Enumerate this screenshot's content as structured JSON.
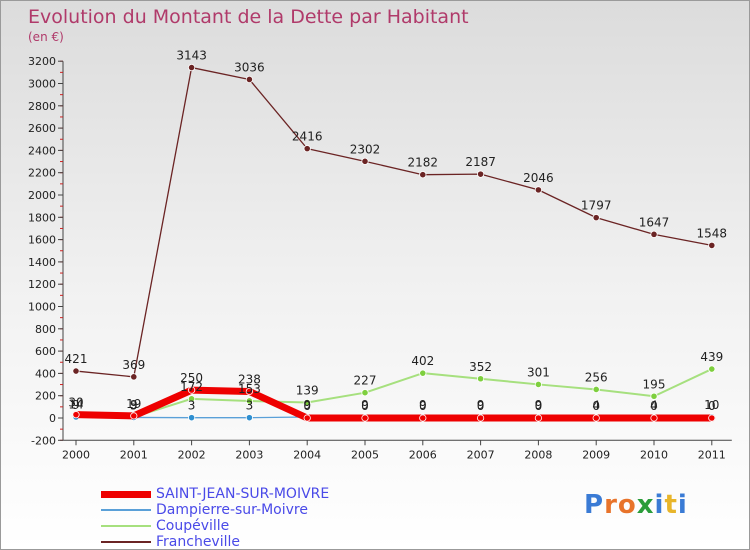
{
  "header": {
    "title": "Evolution du Montant de la Dette par Habitant",
    "subtitle": "(en €)"
  },
  "logo": {
    "text": "Proxiti",
    "colors": [
      "#3a7bd5",
      "#e8732a",
      "#e8732a",
      "#2a9d3a",
      "#3a7bd5",
      "#e8b52a",
      "#3a7bd5"
    ]
  },
  "chart_data": {
    "type": "line",
    "x": [
      "2000",
      "2001",
      "2002",
      "2003",
      "2004",
      "2005",
      "2006",
      "2007",
      "2008",
      "2009",
      "2010",
      "2011"
    ],
    "ylim": [
      -200,
      3200
    ],
    "yticks": [
      -200,
      0,
      200,
      400,
      600,
      800,
      1000,
      1200,
      1400,
      1600,
      1800,
      2000,
      2200,
      2400,
      2600,
      2800,
      3000,
      3200
    ],
    "grid": false,
    "legend_position": "bottom-left",
    "series": [
      {
        "name": "Francheville",
        "color": "#6b2424",
        "width": 1.3,
        "marker": "#6b2424",
        "values": [
          421,
          369,
          3143,
          3036,
          2416,
          2302,
          2182,
          2187,
          2046,
          1797,
          1647,
          1548
        ],
        "labels": [
          "421",
          "369",
          "3143",
          "3036",
          "2416",
          "2302",
          "2182",
          "2187",
          "2046",
          "1797",
          "1647",
          "1548"
        ]
      },
      {
        "name": "Coupéville",
        "color": "#a6e07e",
        "width": 2,
        "marker": "#7ecf3e",
        "values": [
          14,
          9,
          172,
          153,
          139,
          227,
          402,
          352,
          301,
          256,
          195,
          439
        ],
        "labels": [
          "14",
          "9",
          "172",
          "153",
          "139",
          "227",
          "402",
          "352",
          "301",
          "256",
          "195",
          "439"
        ]
      },
      {
        "name": "Dampierre-sur-Moivre",
        "color": "#5aa0d8",
        "width": 1.3,
        "marker": "#2e8fd0",
        "values": [
          9,
          5,
          3,
          3,
          9,
          9,
          9,
          9,
          9,
          4,
          4,
          10
        ],
        "labels": [
          "9",
          "5",
          "3",
          "3",
          "9",
          "9",
          "9",
          "9",
          "9",
          "4",
          "4",
          "10"
        ]
      },
      {
        "name": "SAINT-JEAN-SUR-MOIVRE",
        "color": "#ee0000",
        "width": 7,
        "marker": "#ee0000",
        "values": [
          30,
          19,
          250,
          238,
          0,
          0,
          0,
          0,
          0,
          0,
          0,
          0
        ],
        "labels": [
          "30",
          "19",
          "250",
          "238",
          "0",
          "0",
          "0",
          "0",
          "0",
          "0",
          "0",
          "0"
        ]
      }
    ],
    "legend_order": [
      "SAINT-JEAN-SUR-MOIVRE",
      "Dampierre-sur-Moivre",
      "Coupéville",
      "Francheville"
    ]
  }
}
